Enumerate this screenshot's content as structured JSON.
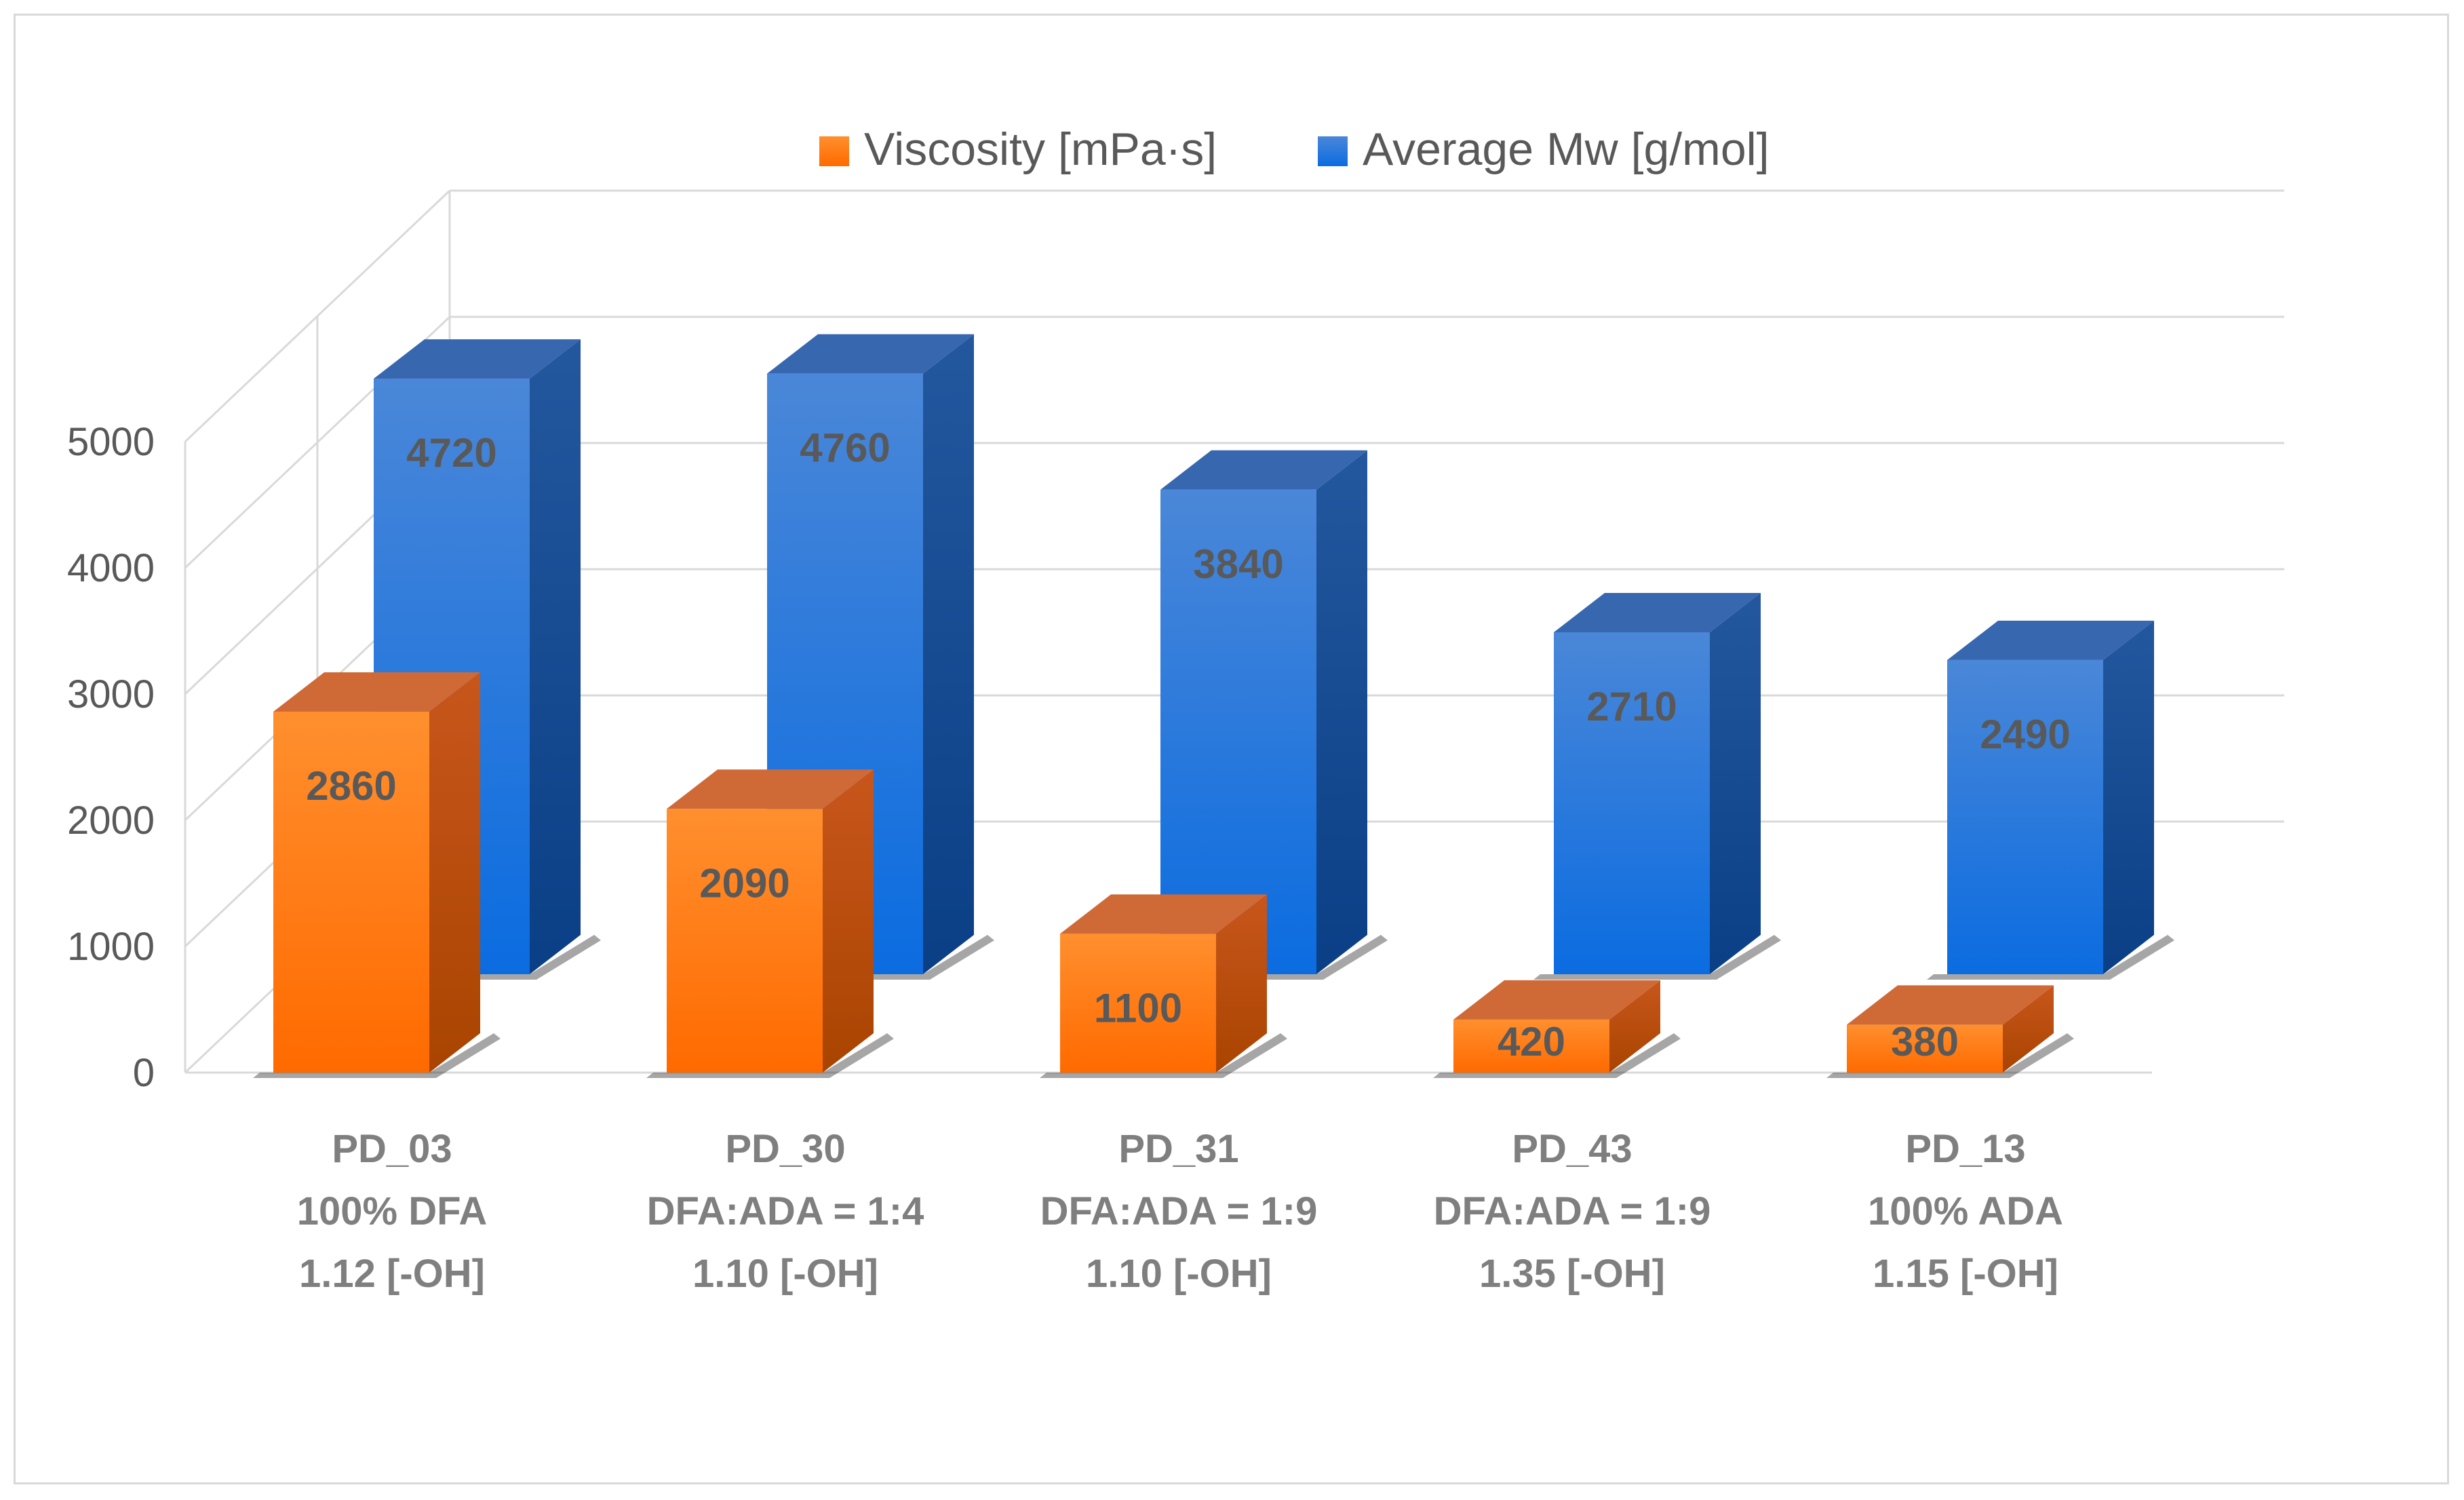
{
  "chart_data": {
    "type": "bar",
    "style": "3d-clustered-depth",
    "categories": [
      [
        "PD_03",
        "100% DFA",
        "1.12 [-OH]"
      ],
      [
        "PD_30",
        "DFA:ADA = 1:4",
        "1.10 [-OH]"
      ],
      [
        "PD_31",
        "DFA:ADA = 1:9",
        "1.10 [-OH]"
      ],
      [
        "PD_43",
        "DFA:ADA = 1:9",
        "1.35 [-OH]"
      ],
      [
        "PD_13",
        "100% ADA",
        "1.15 [-OH]"
      ]
    ],
    "series": [
      {
        "name": "Viscosity [mPa·s]",
        "values": [
          2860,
          2090,
          1100,
          420,
          380
        ],
        "color": "#ff7f27"
      },
      {
        "name": "Average Mw [g/mol]",
        "values": [
          4720,
          4760,
          3840,
          2710,
          2490
        ],
        "color": "#1f6fd1"
      }
    ],
    "ylim": [
      0,
      5000
    ],
    "yticks": [
      0,
      1000,
      2000,
      3000,
      4000,
      5000
    ],
    "grid": true,
    "legend": "top-center",
    "data_labels": true
  }
}
